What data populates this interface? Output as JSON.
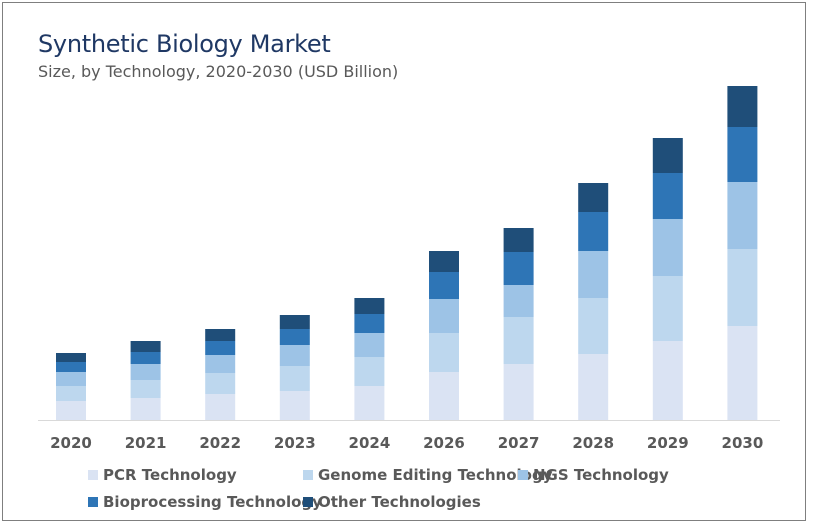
{
  "chart_data": {
    "type": "bar",
    "stacked": true,
    "title": "Synthetic Biology Market",
    "subtitle": "Size, by Technology, 2020-2030 (USD Billion)",
    "xlabel": "",
    "ylabel": "",
    "categories": [
      "2020",
      "2021",
      "2022",
      "2023",
      "2024",
      "2026",
      "2027",
      "2028",
      "2029",
      "2030"
    ],
    "ylim": [
      0,
      50.1
    ],
    "grid": false,
    "legend_position": "bottom",
    "series": [
      {
        "name": "PCR Technology",
        "color": "#dae3f3",
        "values": [
          2.85,
          3.3,
          3.9,
          4.35,
          5.1,
          7.2,
          8.4,
          9.9,
          11.85,
          14.1
        ]
      },
      {
        "name": "Genome Editing Technology",
        "color": "#bdd7ee",
        "values": [
          2.25,
          2.7,
          3.15,
          3.75,
          4.35,
          5.85,
          7.05,
          8.4,
          9.75,
          11.55
        ]
      },
      {
        "name": "NGS Technology",
        "color": "#9dc3e6",
        "values": [
          2.1,
          2.4,
          2.7,
          3.15,
          3.6,
          5.1,
          4.8,
          7.05,
          8.55,
          10.05
        ]
      },
      {
        "name": "Bioprocessing Technology",
        "color": "#2e75b6",
        "values": [
          1.5,
          1.8,
          2.1,
          2.4,
          2.85,
          4.05,
          4.95,
          5.85,
          6.9,
          8.25
        ]
      },
      {
        "name": "Other Technologies",
        "color": "#1f4e79",
        "values": [
          1.35,
          1.65,
          1.8,
          2.1,
          2.4,
          3.15,
          3.6,
          4.35,
          5.25,
          6.15
        ]
      }
    ]
  }
}
